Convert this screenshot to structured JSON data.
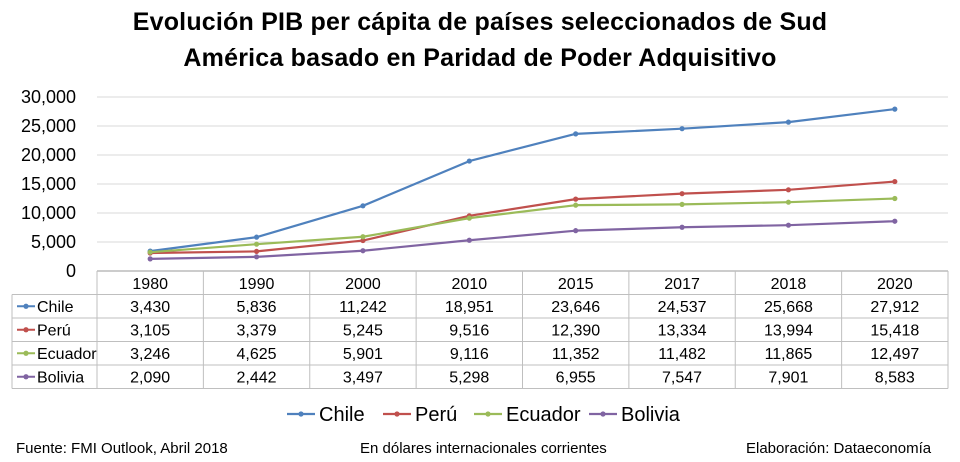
{
  "title_line1": "Evolución PIB per cápita de países seleccionados de Sud",
  "title_line2": "América  basado en Paridad de Poder Adquisitivo",
  "footer": {
    "source": "Fuente: FMI Outlook, Abril 2018",
    "units": "En dólares internacionales corrientes",
    "credit": "Elaboración: Dataeconomía"
  },
  "colors": {
    "Chile": "#4f81bd",
    "Perú": "#c0504d",
    "Ecuador": "#9bbb59",
    "Bolivia": "#8064a2",
    "grid": "#d9d9d9",
    "table_border": "#bfbfbf"
  },
  "chart_data": {
    "type": "line",
    "categories": [
      "1980",
      "1990",
      "2000",
      "2010",
      "2015",
      "2017",
      "2018",
      "2020"
    ],
    "series": [
      {
        "name": "Chile",
        "values": [
          3430,
          5836,
          11242,
          18951,
          23646,
          24537,
          25668,
          27912
        ],
        "labels": [
          "3,430",
          "5,836",
          "11,242",
          "18,951",
          "23,646",
          "24,537",
          "25,668",
          "27,912"
        ]
      },
      {
        "name": "Perú",
        "values": [
          3105,
          3379,
          5245,
          9516,
          12390,
          13334,
          13994,
          15418
        ],
        "labels": [
          "3,105",
          "3,379",
          "5,245",
          "9,516",
          "12,390",
          "13,334",
          "13,994",
          "15,418"
        ]
      },
      {
        "name": "Ecuador",
        "values": [
          3246,
          4625,
          5901,
          9116,
          11352,
          11482,
          11865,
          12497
        ],
        "labels": [
          "3,246",
          "4,625",
          "5,901",
          "9,116",
          "11,352",
          "11,482",
          "11,865",
          "12,497"
        ]
      },
      {
        "name": "Bolivia",
        "values": [
          2090,
          2442,
          3497,
          5298,
          6955,
          7547,
          7901,
          8583
        ],
        "labels": [
          "2,090",
          "2,442",
          "3,497",
          "5,298",
          "6,955",
          "7,547",
          "7,901",
          "8,583"
        ]
      }
    ],
    "ylim": [
      0,
      30000
    ],
    "yticks": [
      0,
      5000,
      10000,
      15000,
      20000,
      25000,
      30000
    ],
    "ytick_labels": [
      "0",
      "5,000",
      "10,000",
      "15,000",
      "20,000",
      "25,000",
      "30,000"
    ],
    "grid": true,
    "legend": "bottom",
    "data_table": true
  }
}
